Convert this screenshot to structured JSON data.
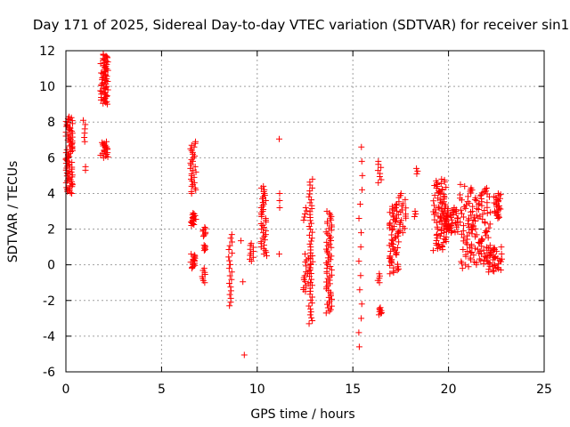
{
  "chart_data": {
    "type": "scatter",
    "title": "Day 171 of 2025, Sidereal Day-to-day VTEC variation (SDTVAR) for receiver sin1",
    "xlabel": "GPS time / hours",
    "ylabel": "SDTVAR / TECUs",
    "xlim": [
      0,
      25
    ],
    "ylim": [
      -6,
      12
    ],
    "xticks": [
      0,
      5,
      10,
      15,
      20,
      25
    ],
    "yticks": [
      -6,
      -4,
      -2,
      0,
      2,
      4,
      6,
      8,
      10,
      12
    ],
    "grid": true,
    "marker": "+",
    "color": "#ff0000",
    "series": [
      {
        "name": "SDTVAR",
        "clusters": [
          {
            "x": [
              0.0,
              0.35
            ],
            "y": [
              4.0,
              8.3
            ],
            "n": 80
          },
          {
            "x": [
              0.9,
              1.05
            ],
            "y": [
              6.9,
              8.1
            ],
            "n": 6
          },
          {
            "x": [
              0.95,
              1.05
            ],
            "y": [
              5.3,
              5.5
            ],
            "n": 2
          },
          {
            "x": [
              1.8,
              2.2
            ],
            "y": [
              9.0,
              11.8
            ],
            "n": 60
          },
          {
            "x": [
              1.8,
              2.2
            ],
            "y": [
              6.0,
              6.9
            ],
            "n": 20
          },
          {
            "x": [
              6.5,
              6.8
            ],
            "y": [
              4.0,
              6.9
            ],
            "n": 30
          },
          {
            "x": [
              6.5,
              6.8
            ],
            "y": [
              2.2,
              2.9
            ],
            "n": 15
          },
          {
            "x": [
              6.5,
              6.8
            ],
            "y": [
              -0.2,
              0.6
            ],
            "n": 15
          },
          {
            "x": [
              7.1,
              7.3
            ],
            "y": [
              1.6,
              2.1
            ],
            "n": 8
          },
          {
            "x": [
              7.1,
              7.3
            ],
            "y": [
              0.8,
              1.1
            ],
            "n": 6
          },
          {
            "x": [
              7.1,
              7.3
            ],
            "y": [
              -1.0,
              -0.2
            ],
            "n": 8
          },
          {
            "x": [
              8.5,
              8.7
            ],
            "y": [
              -2.3,
              1.7
            ],
            "n": 20
          },
          {
            "x": [
              9.1,
              9.2
            ],
            "y": [
              1.3,
              1.4
            ],
            "n": 1
          },
          {
            "x": [
              9.2,
              9.3
            ],
            "y": [
              -1.0,
              -0.9
            ],
            "n": 1
          },
          {
            "x": [
              9.3,
              9.35
            ],
            "y": [
              -5.1,
              -5.0
            ],
            "n": 1
          },
          {
            "x": [
              9.6,
              9.8
            ],
            "y": [
              0.2,
              1.2
            ],
            "n": 10
          },
          {
            "x": [
              10.2,
              10.5
            ],
            "y": [
              0.5,
              4.4
            ],
            "n": 40
          },
          {
            "x": [
              11.1,
              11.2
            ],
            "y": [
              7.0,
              7.1
            ],
            "n": 1
          },
          {
            "x": [
              11.1,
              11.2
            ],
            "y": [
              3.2,
              4.0
            ],
            "n": 3
          },
          {
            "x": [
              11.1,
              11.2
            ],
            "y": [
              0.5,
              0.7
            ],
            "n": 1
          },
          {
            "x": [
              12.4,
              12.6
            ],
            "y": [
              2.5,
              3.2
            ],
            "n": 5
          },
          {
            "x": [
              12.4,
              12.8
            ],
            "y": [
              -1.5,
              0.6
            ],
            "n": 20
          },
          {
            "x": [
              12.7,
              12.9
            ],
            "y": [
              -3.3,
              4.8
            ],
            "n": 50
          },
          {
            "x": [
              13.6,
              13.9
            ],
            "y": [
              -2.7,
              3.0
            ],
            "n": 60
          },
          {
            "x": [
              15.3,
              15.5
            ],
            "y": [
              -4.6,
              6.6
            ],
            "n": 15
          },
          {
            "x": [
              16.3,
              16.5
            ],
            "y": [
              4.6,
              5.8
            ],
            "n": 8
          },
          {
            "x": [
              16.3,
              16.5
            ],
            "y": [
              -2.8,
              -2.4
            ],
            "n": 8
          },
          {
            "x": [
              16.3,
              16.5
            ],
            "y": [
              -1.0,
              -0.5
            ],
            "n": 5
          },
          {
            "x": [
              16.9,
              17.4
            ],
            "y": [
              -0.5,
              3.4
            ],
            "n": 60
          },
          {
            "x": [
              17.4,
              17.8
            ],
            "y": [
              1.8,
              4.0
            ],
            "n": 20
          },
          {
            "x": [
              18.2,
              18.4
            ],
            "y": [
              5.1,
              5.4
            ],
            "n": 3
          },
          {
            "x": [
              18.2,
              18.4
            ],
            "y": [
              2.7,
              3.0
            ],
            "n": 3
          },
          {
            "x": [
              19.2,
              19.9
            ],
            "y": [
              0.8,
              4.8
            ],
            "n": 80
          },
          {
            "x": [
              19.7,
              20.5
            ],
            "y": [
              1.8,
              3.2
            ],
            "n": 50
          },
          {
            "x": [
              20.6,
              21.2
            ],
            "y": [
              -0.2,
              4.5
            ],
            "n": 50
          },
          {
            "x": [
              21.2,
              22.2
            ],
            "y": [
              0.0,
              4.3
            ],
            "n": 80
          },
          {
            "x": [
              22.0,
              22.8
            ],
            "y": [
              -0.4,
              1.0
            ],
            "n": 40
          },
          {
            "x": [
              22.3,
              22.8
            ],
            "y": [
              2.6,
              4.0
            ],
            "n": 25
          }
        ]
      }
    ]
  }
}
